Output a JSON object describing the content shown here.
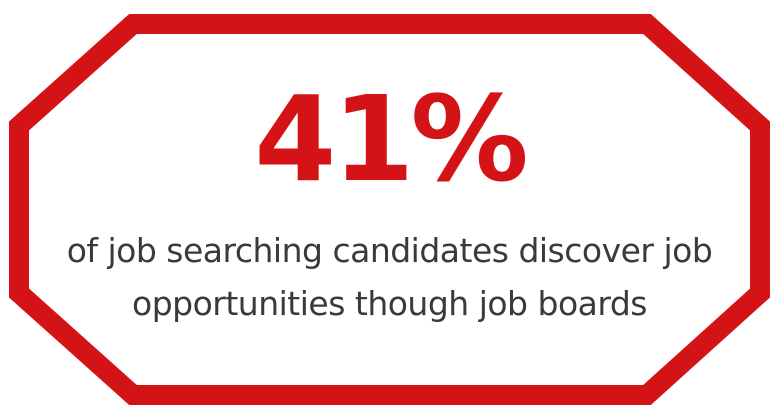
{
  "colors": {
    "accent": "#d41317",
    "text": "#3a3a3a",
    "background": "#ffffff"
  },
  "shape": "octagon-frame",
  "stat": {
    "value": "41%"
  },
  "caption": {
    "line1": "of job searching candidates discover job",
    "line2": "opportunities though job boards"
  }
}
